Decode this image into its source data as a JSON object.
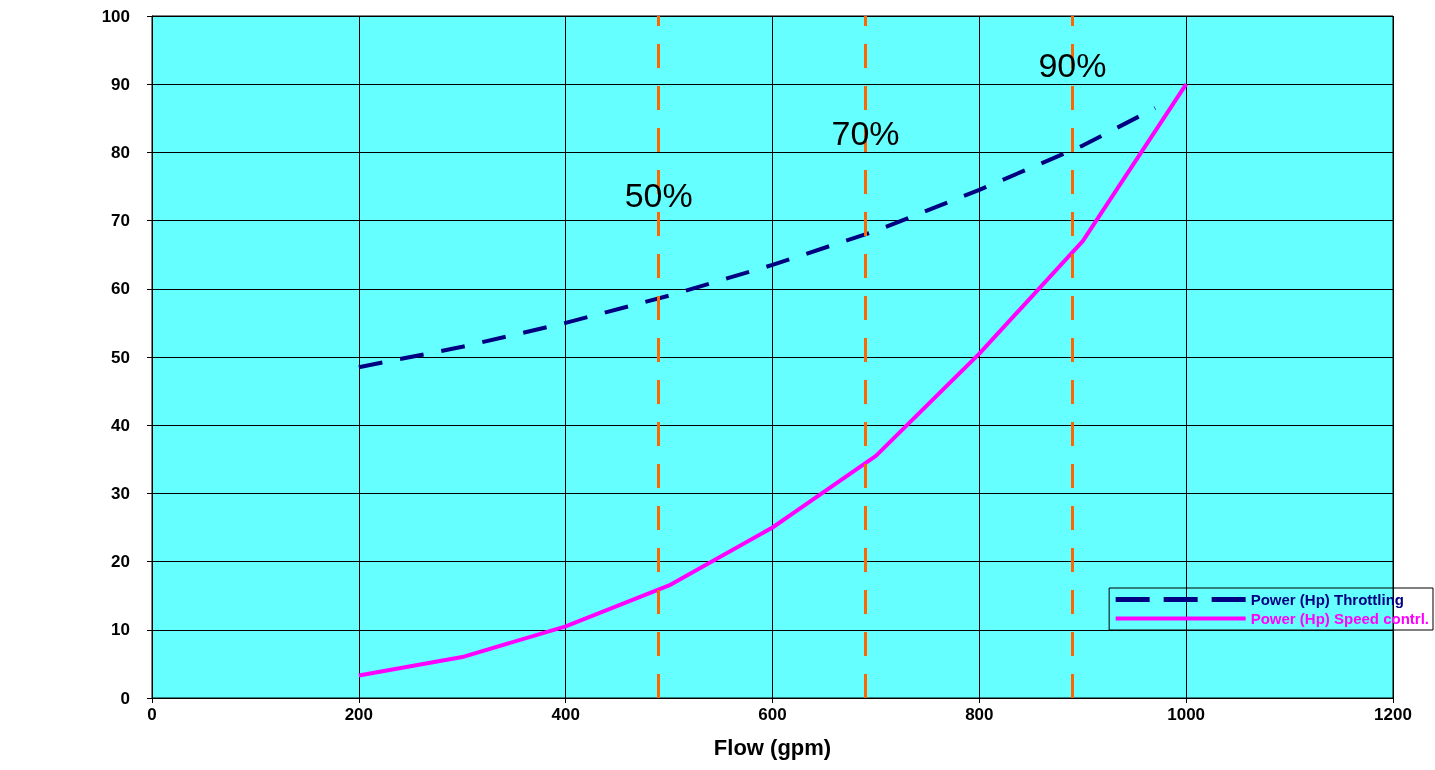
{
  "chart_data": {
    "type": "line",
    "xlabel": "Flow (gpm)",
    "xlim": [
      0,
      1200
    ],
    "xticks": [
      0,
      200,
      400,
      600,
      800,
      1000,
      1200
    ],
    "ylim": [
      0,
      100
    ],
    "yticks": [
      0,
      10,
      20,
      30,
      40,
      50,
      60,
      70,
      80,
      90,
      100
    ],
    "grid": true,
    "legend": "bottom right",
    "marker": "none",
    "series": [
      {
        "name": "Power (Hp) Throttling",
        "color": "#000080",
        "line_style": "dashed",
        "x": [
          200,
          300,
          400,
          500,
          600,
          700,
          800,
          900,
          970
        ],
        "values": [
          48.5,
          51.5,
          55,
          59,
          63.5,
          68.5,
          74.5,
          81,
          86.5
        ]
      },
      {
        "name": "Power (Hp) Speed contrl.",
        "color": "#ff00ff",
        "line_style": "solid",
        "x": [
          200,
          300,
          400,
          500,
          600,
          700,
          800,
          900,
          1000
        ],
        "values": [
          3.3,
          6,
          10.5,
          16.5,
          25,
          35.5,
          50.5,
          67,
          90
        ]
      }
    ],
    "ref_lines": [
      {
        "axis": "x",
        "value": 490,
        "color": "#ff6600",
        "line_style": "dashed"
      },
      {
        "axis": "x",
        "value": 690,
        "color": "#ff6600",
        "line_style": "dashed"
      },
      {
        "axis": "x",
        "value": 890,
        "color": "#ff6600",
        "line_style": "dashed"
      }
    ],
    "annotations": [
      {
        "text": "50%",
        "x": 490,
        "y": 71
      },
      {
        "text": "70%",
        "x": 690,
        "y": 80
      },
      {
        "text": "90%",
        "x": 890,
        "y": 90
      }
    ]
  }
}
